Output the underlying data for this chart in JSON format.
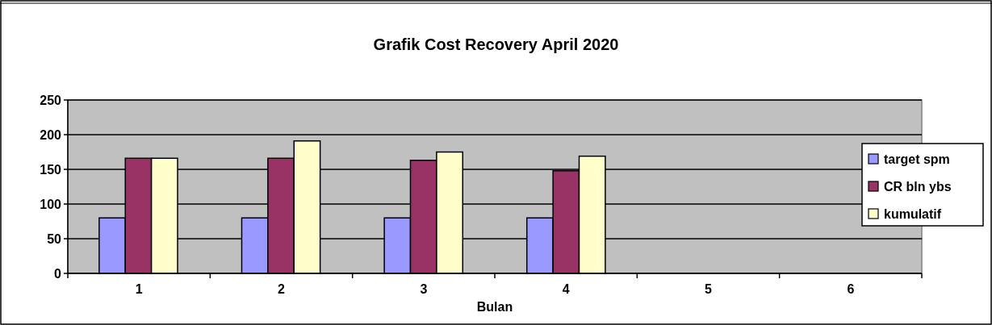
{
  "chart_data": {
    "type": "bar",
    "title": "Grafik Cost Recovery April 2020",
    "xlabel": "Bulan",
    "categories": [
      "1",
      "2",
      "3",
      "4",
      "5",
      "6"
    ],
    "series": [
      {
        "name": "target spm",
        "color": "#9999ff",
        "values": [
          80,
          80,
          80,
          80,
          null,
          null
        ]
      },
      {
        "name": "CR bln ybs",
        "color": "#993366",
        "values": [
          166,
          166,
          163,
          148,
          null,
          null
        ]
      },
      {
        "name": "kumulatif",
        "color": "#ffffcc",
        "values": [
          166,
          191,
          175,
          169,
          null,
          null
        ]
      }
    ],
    "ylim": [
      0,
      250
    ],
    "yticks": [
      0,
      50,
      100,
      150,
      200,
      250
    ],
    "grid": "y",
    "legend": "right"
  }
}
